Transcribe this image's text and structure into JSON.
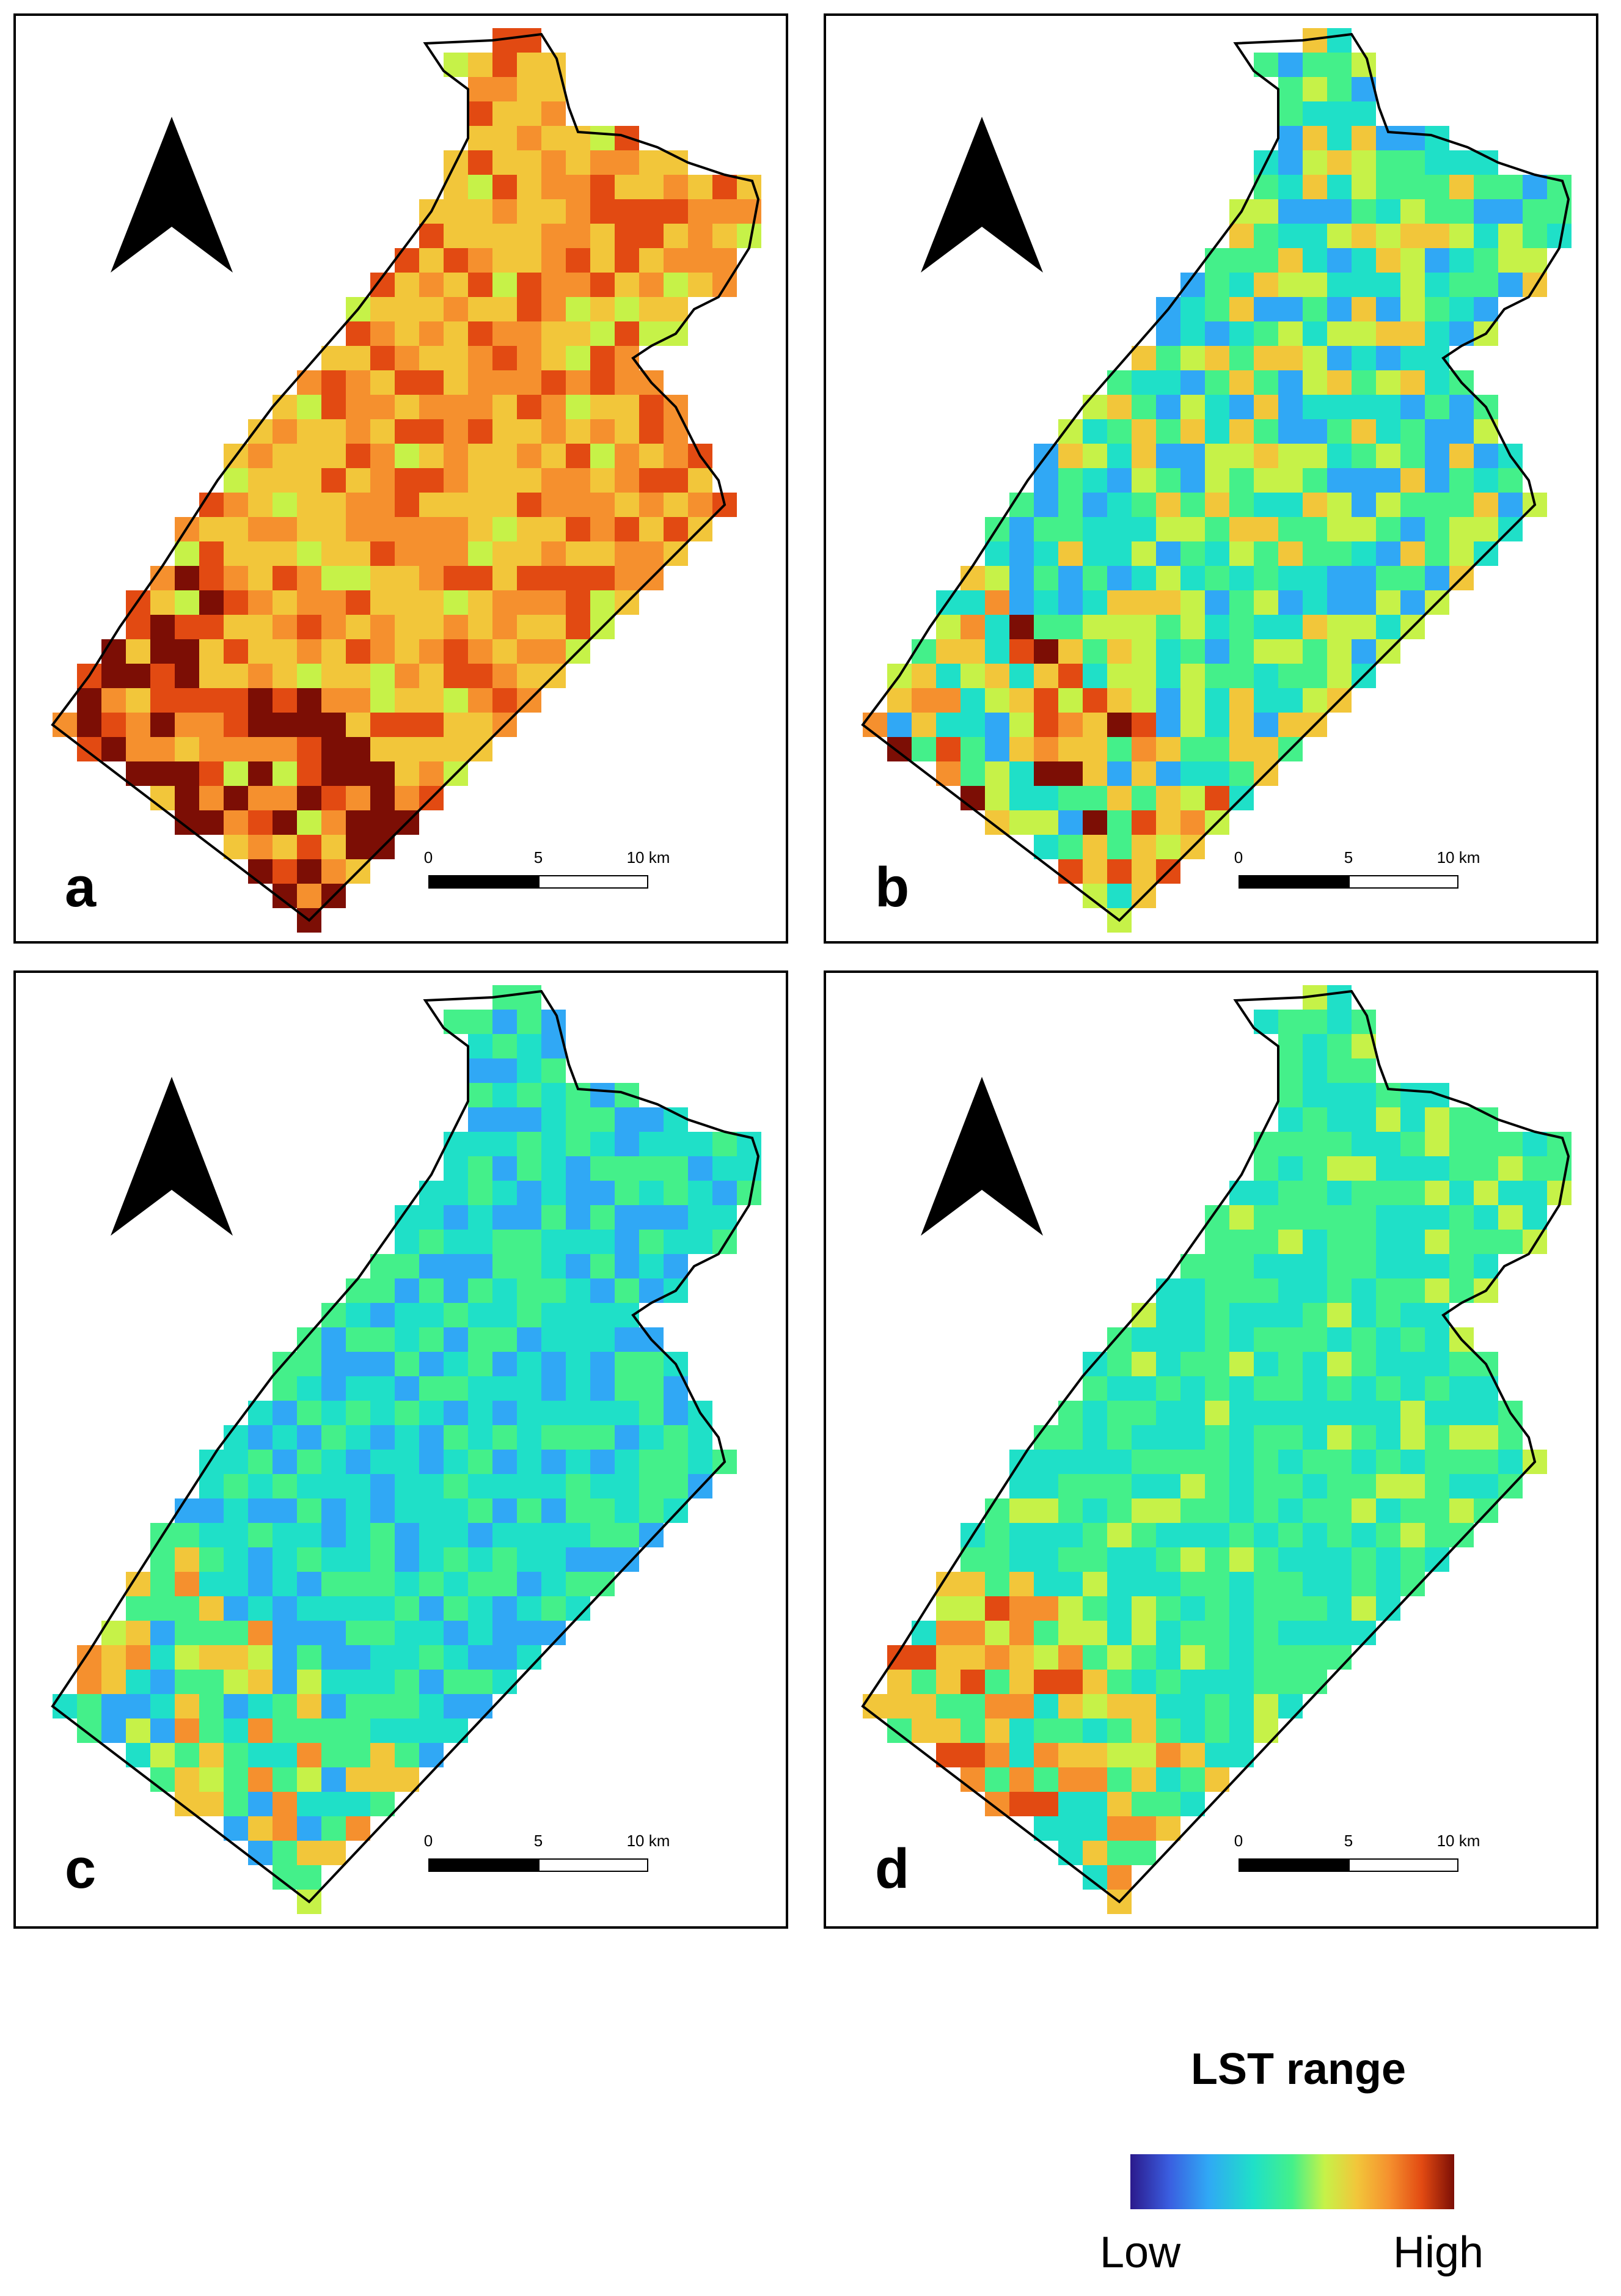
{
  "panels": [
    {
      "letter": "a",
      "scale_labels": [
        "0",
        "5",
        "10 km"
      ],
      "dominant": "warm"
    },
    {
      "letter": "b",
      "scale_labels": [
        "0",
        "5",
        "10 km"
      ],
      "dominant": "mixed"
    },
    {
      "letter": "c",
      "scale_labels": [
        "0",
        "5",
        "10 km"
      ],
      "dominant": "cool"
    },
    {
      "letter": "d",
      "scale_labels": [
        "0",
        "5",
        "10 km"
      ],
      "dominant": "cool-green"
    }
  ],
  "legend": {
    "title": "LST range",
    "low_label": "Low",
    "high_label": "High",
    "colors": [
      "#2b1a8c",
      "#3a5ee0",
      "#30a8f5",
      "#1fe0c8",
      "#44f08a",
      "#c6f248",
      "#f2c63a",
      "#f5902e",
      "#e24a12",
      "#7c0e05"
    ]
  },
  "icons": {
    "north_arrow": "north-arrow-icon"
  }
}
